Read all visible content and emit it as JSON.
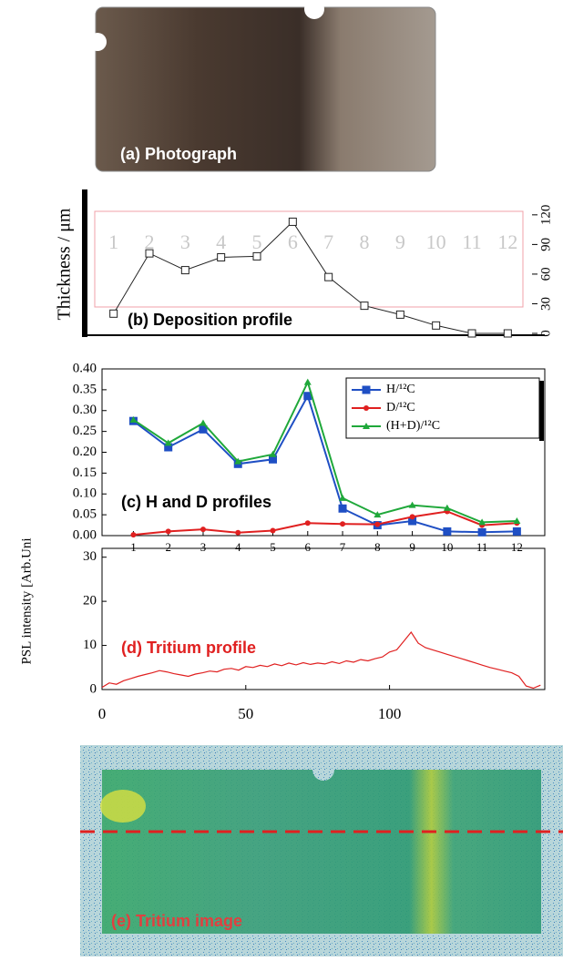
{
  "photograph_label": "(a) Photograph",
  "tritium_image_label": "(e) Tritium image",
  "chart_data": [
    {
      "type": "line",
      "title": "(b)  Deposition profile",
      "y_label": "Thickness / μm",
      "categories": [
        "1",
        "2",
        "3",
        "4",
        "5",
        "6",
        "7",
        "8",
        "9",
        "10",
        "11",
        "12"
      ],
      "values": [
        20,
        81,
        64,
        77,
        78,
        113,
        57,
        28,
        19,
        8,
        0,
        0
      ],
      "color": "#222222",
      "marker": "square",
      "ylim": [
        0,
        130
      ],
      "yticks": [
        0,
        30,
        60,
        90,
        120
      ]
    },
    {
      "type": "line",
      "title": "(c) H and D profiles",
      "x": [
        1,
        2,
        3,
        4,
        5,
        6,
        7,
        8,
        9,
        10,
        11,
        12
      ],
      "series": [
        {
          "name": "H/¹²C",
          "color": "#1f4fc4",
          "marker": "square",
          "values": [
            0.275,
            0.212,
            0.255,
            0.172,
            0.183,
            0.335,
            0.065,
            0.025,
            0.035,
            0.01,
            0.008,
            0.01
          ]
        },
        {
          "name": "D/¹²C",
          "color": "#e02020",
          "marker": "circle",
          "values": [
            0.002,
            0.01,
            0.015,
            0.007,
            0.012,
            0.03,
            0.028,
            0.027,
            0.045,
            0.058,
            0.025,
            0.03
          ]
        },
        {
          "name": "(H+D)/¹²C",
          "color": "#1fa83a",
          "marker": "triangle",
          "values": [
            0.278,
            0.222,
            0.27,
            0.178,
            0.195,
            0.368,
            0.09,
            0.05,
            0.073,
            0.066,
            0.032,
            0.035
          ]
        }
      ],
      "xlim": [
        0.1,
        12.8
      ],
      "xticks": [
        1,
        2,
        3,
        4,
        5,
        6,
        7,
        8,
        9,
        10,
        11,
        12
      ],
      "ylim": [
        0,
        0.4
      ],
      "yticks": [
        {
          "value": 0,
          "label": "0.00"
        },
        {
          "value": 0.05,
          "label": "0.05"
        },
        {
          "value": 0.1,
          "label": "0.10"
        },
        {
          "value": 0.15,
          "label": "0.15"
        },
        {
          "value": 0.2,
          "label": "0.20"
        },
        {
          "value": 0.25,
          "label": "0.25"
        },
        {
          "value": 0.3,
          "label": "0.30"
        },
        {
          "value": 0.35,
          "label": "0.35"
        },
        {
          "value": 0.4,
          "label": "0.40"
        }
      ],
      "legend": "upper right"
    },
    {
      "type": "line",
      "title": "(d) Tritium profile",
      "y_label": "PSL intensity [Arb.Uni",
      "x": [
        0,
        2.5,
        5,
        7.5,
        10,
        12.5,
        15,
        17.5,
        20,
        22.5,
        25,
        27.5,
        30,
        32.5,
        35,
        37.5,
        40,
        42.5,
        45,
        47.5,
        50,
        52.5,
        55,
        57.5,
        60,
        62.5,
        65,
        67.5,
        70,
        72.5,
        75,
        77.5,
        80,
        82.5,
        85,
        87.5,
        90,
        92.5,
        95,
        97.5,
        100,
        102.5,
        105,
        107.5,
        110,
        112.5,
        115,
        117.5,
        120,
        122.5,
        125,
        127.5,
        130,
        132.5,
        135,
        137.5,
        140,
        142.5,
        145,
        147.5,
        150,
        152.5
      ],
      "values": [
        0.5,
        1.5,
        1.2,
        2,
        2.5,
        3,
        3.4,
        3.8,
        4.3,
        4,
        3.6,
        3.3,
        3,
        3.5,
        3.8,
        4.2,
        4,
        4.6,
        4.8,
        4.4,
        5.2,
        5,
        5.5,
        5.2,
        5.8,
        5.4,
        6,
        5.6,
        6.1,
        5.7,
        6,
        5.8,
        6.3,
        5.9,
        6.5,
        6.2,
        6.8,
        6.5,
        7,
        7.4,
        8.5,
        9,
        11,
        13,
        10.5,
        9.5,
        9,
        8.5,
        8,
        7.5,
        7,
        6.5,
        6,
        5.5,
        5,
        4.6,
        4.2,
        3.8,
        3,
        0.8,
        0.3,
        1
      ],
      "color": "#e02020",
      "xlim": [
        0,
        154
      ],
      "xticks": [
        0,
        50,
        100
      ],
      "ylim": [
        0,
        32
      ],
      "yticks": [
        0,
        10,
        20,
        30
      ]
    }
  ]
}
